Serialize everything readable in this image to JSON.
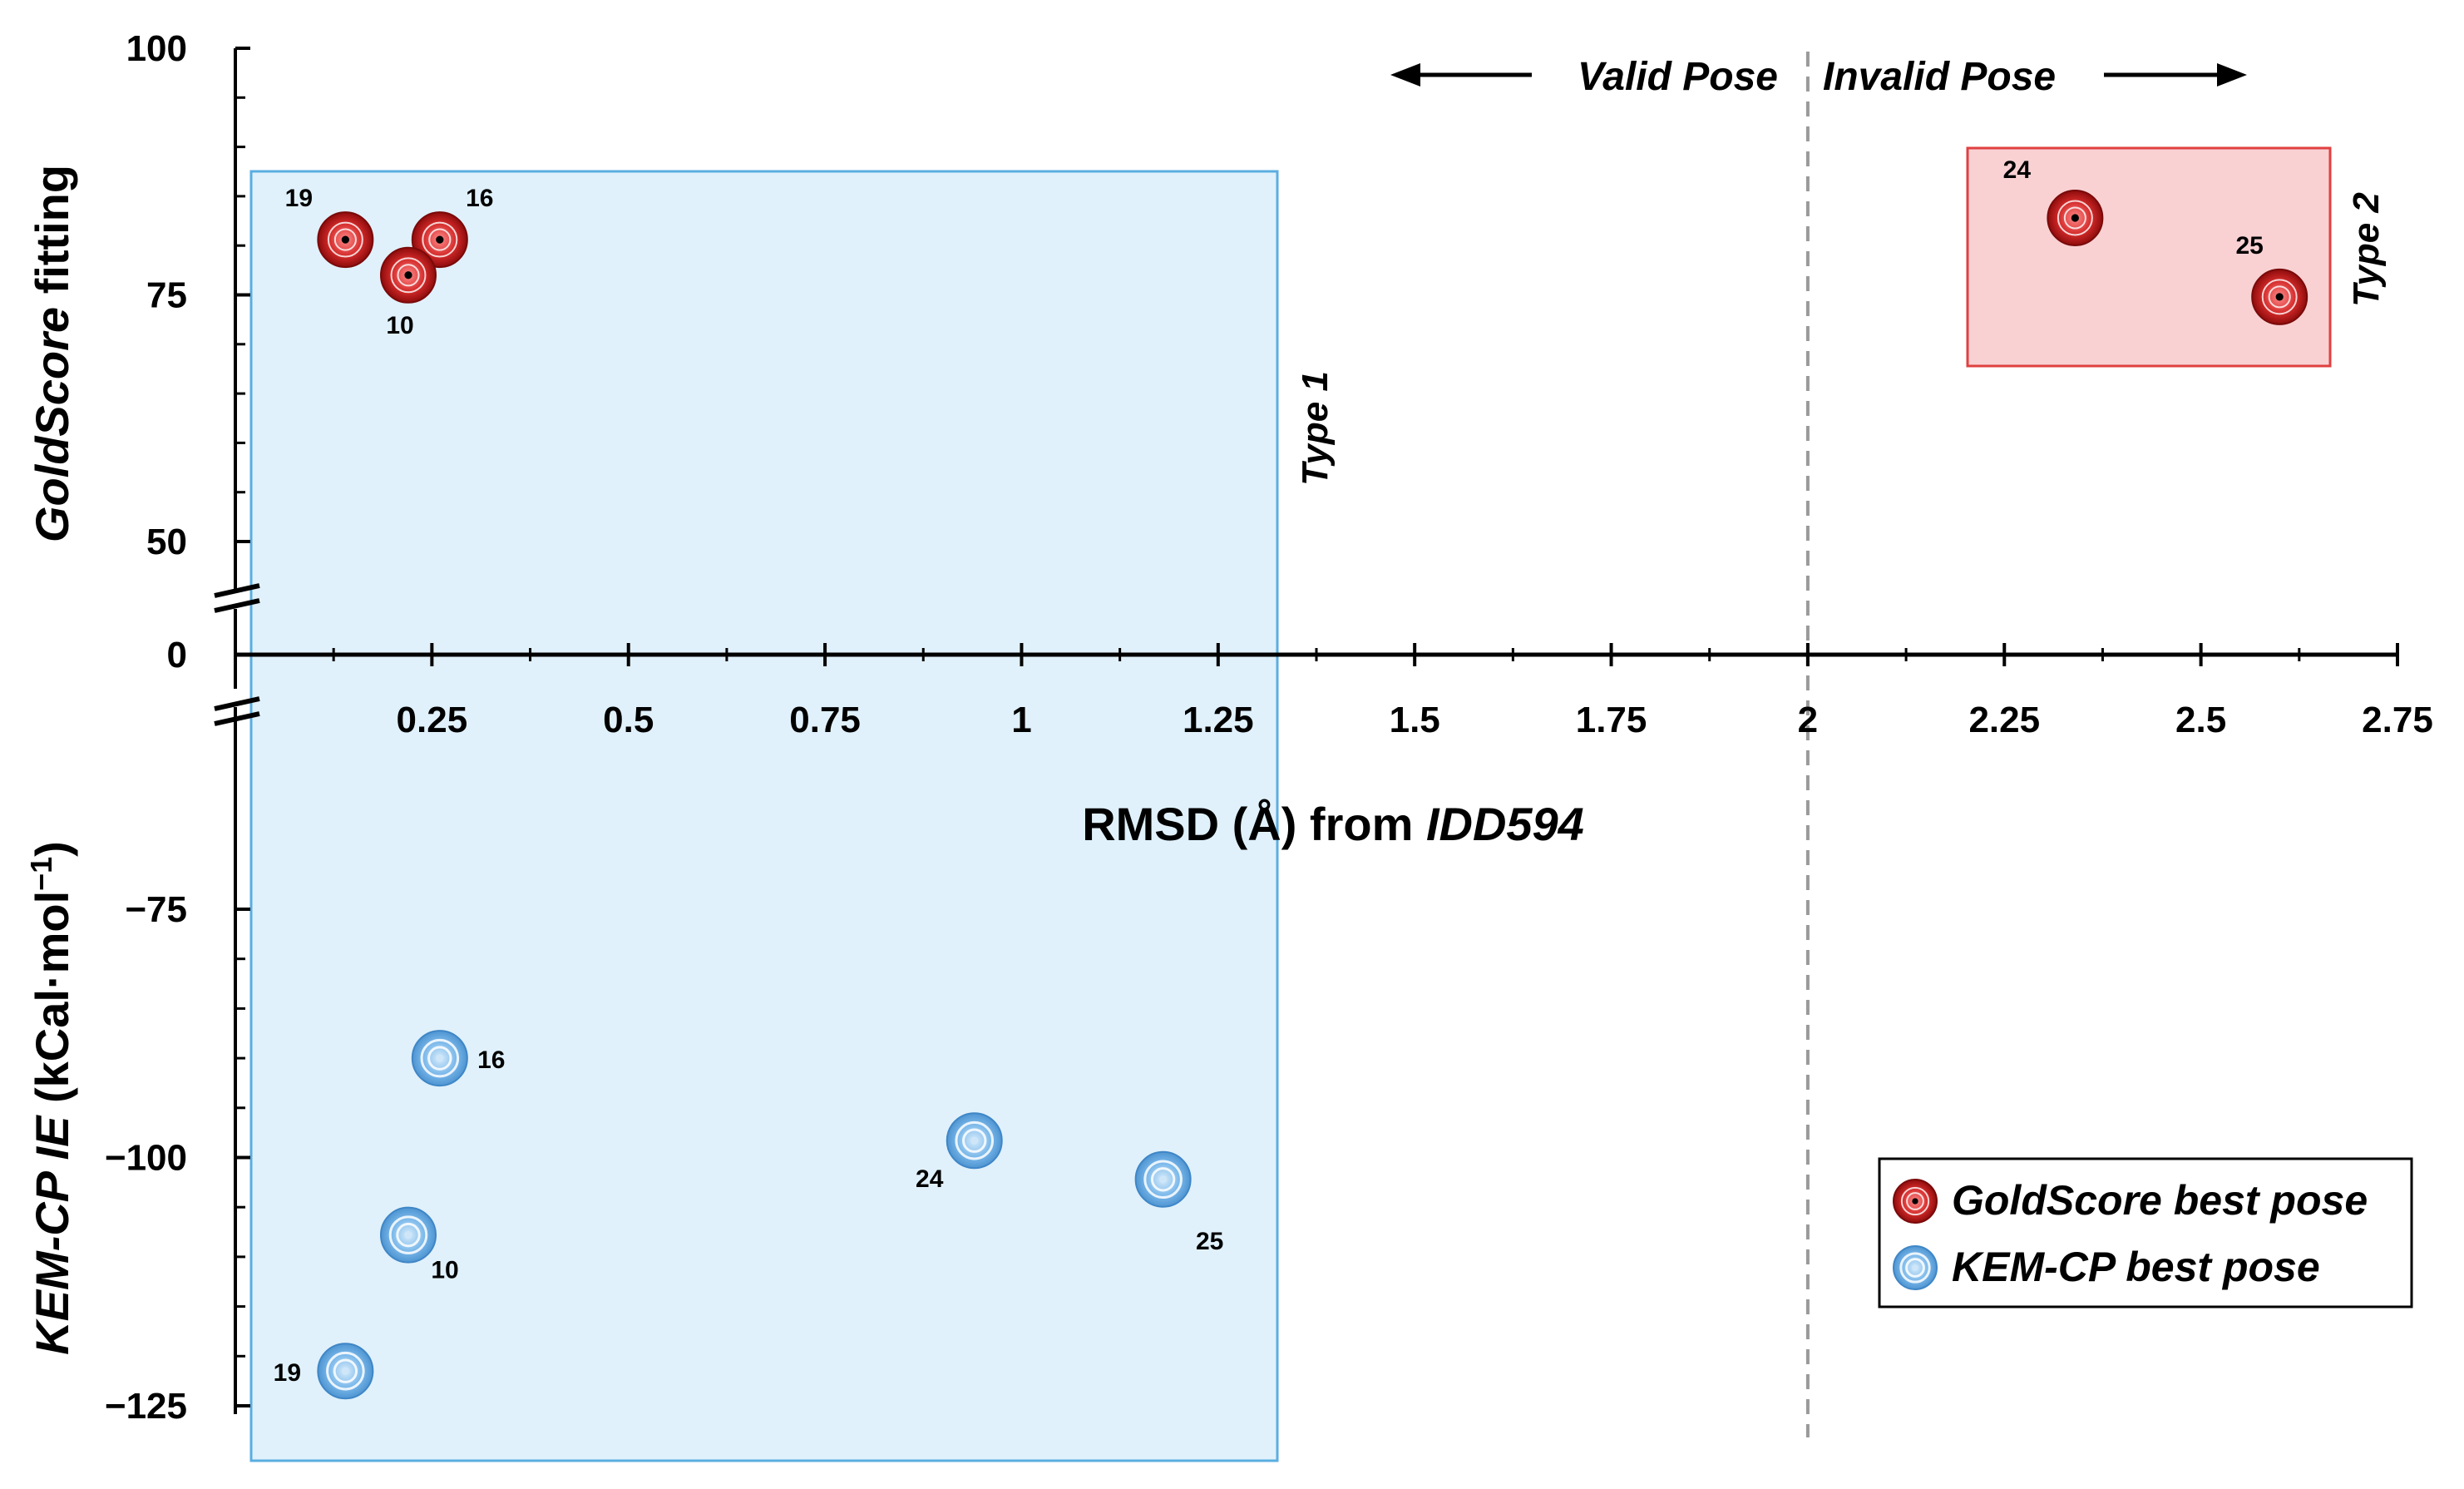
{
  "chart_data": {
    "type": "scatter",
    "xlabel_prefix": "RMSD (Å) from ",
    "xlabel_italic": "IDD594",
    "ylabel_top_italic": "GoldScore",
    "ylabel_top_rest": " fitting",
    "ylabel_bottom_italic": "KEM-CP IE",
    "ylabel_bottom_rest": " (kCal·mol",
    "ylabel_bottom_sup": "−1",
    "ylabel_bottom_close": ")",
    "xlim": [
      0,
      2.75
    ],
    "x_ticks": [
      {
        "value": 0.25,
        "label": "0.25"
      },
      {
        "value": 0.5,
        "label": "0.5"
      },
      {
        "value": 0.75,
        "label": "0.75"
      },
      {
        "value": 1,
        "label": "1"
      },
      {
        "value": 1.25,
        "label": "1.25"
      },
      {
        "value": 1.5,
        "label": "1.5"
      },
      {
        "value": 1.75,
        "label": "1.75"
      },
      {
        "value": 2,
        "label": "2"
      },
      {
        "value": 2.25,
        "label": "2.25"
      },
      {
        "value": 2.5,
        "label": "2.5"
      },
      {
        "value": 2.75,
        "label": "2.75"
      }
    ],
    "y_top_range": [
      50,
      100
    ],
    "y_top_ticks": [
      {
        "value": 100,
        "label": "100"
      },
      {
        "value": 75,
        "label": "75"
      },
      {
        "value": 50,
        "label": "50"
      }
    ],
    "y_zero_label": "0",
    "y_bottom_range": [
      -125,
      -75
    ],
    "y_bottom_ticks": [
      {
        "value": -75,
        "label": "−75"
      },
      {
        "value": -100,
        "label": "−100"
      },
      {
        "value": -125,
        "label": "−125"
      }
    ],
    "threshold_x": 2.0,
    "valid_label": "Valid Pose",
    "invalid_label": "Invalid Pose",
    "series": [
      {
        "name": "GoldScore best pose",
        "color": "#cc1f1f",
        "panel": "top",
        "points": [
          {
            "id": "19",
            "x": 0.14,
            "y": 80.6
          },
          {
            "id": "16",
            "x": 0.26,
            "y": 80.6
          },
          {
            "id": "10",
            "x": 0.22,
            "y": 77.0
          },
          {
            "id": "24",
            "x": 2.34,
            "y": 82.8
          },
          {
            "id": "25",
            "x": 2.6,
            "y": 74.8
          }
        ]
      },
      {
        "name": "KEM-CP best pose",
        "color": "#6aaee6",
        "panel": "bottom",
        "points": [
          {
            "id": "16",
            "x": 0.26,
            "y": -90.0
          },
          {
            "id": "24",
            "x": 0.94,
            "y": -98.3
          },
          {
            "id": "25",
            "x": 1.18,
            "y": -102.2
          },
          {
            "id": "10",
            "x": 0.22,
            "y": -107.8
          },
          {
            "id": "19",
            "x": 0.14,
            "y": -121.5
          }
        ]
      }
    ],
    "regions": [
      {
        "label": "Type 1",
        "color": "#5aaee0"
      },
      {
        "label": "Type 2",
        "color": "#e04040"
      }
    ]
  }
}
